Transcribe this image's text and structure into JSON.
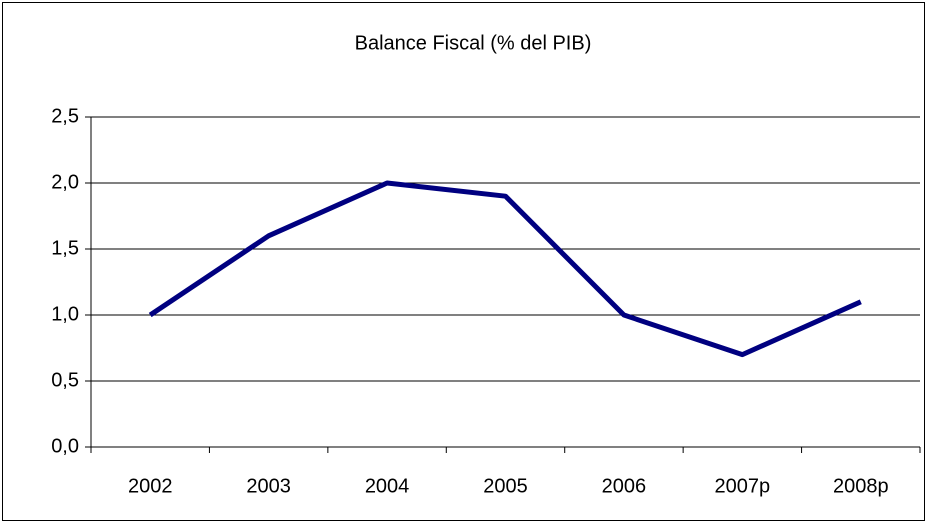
{
  "chart_data": {
    "type": "line",
    "title": "Balance Fiscal (% del PIB)",
    "categories": [
      "2002",
      "2003",
      "2004",
      "2005",
      "2006",
      "2007p",
      "2008p"
    ],
    "values": [
      1.0,
      1.6,
      2.0,
      1.9,
      1.0,
      0.7,
      1.1
    ],
    "color": "#000080",
    "ylim": [
      0,
      2.5
    ],
    "yticks": [
      {
        "value": 0,
        "label": "0,0"
      },
      {
        "value": 0.5,
        "label": "0,5"
      },
      {
        "value": 1,
        "label": "1,0"
      },
      {
        "value": 1.5,
        "label": "1,5"
      },
      {
        "value": 2,
        "label": "2,0"
      },
      {
        "value": 2.5,
        "label": "2,5"
      }
    ],
    "grid": true
  }
}
